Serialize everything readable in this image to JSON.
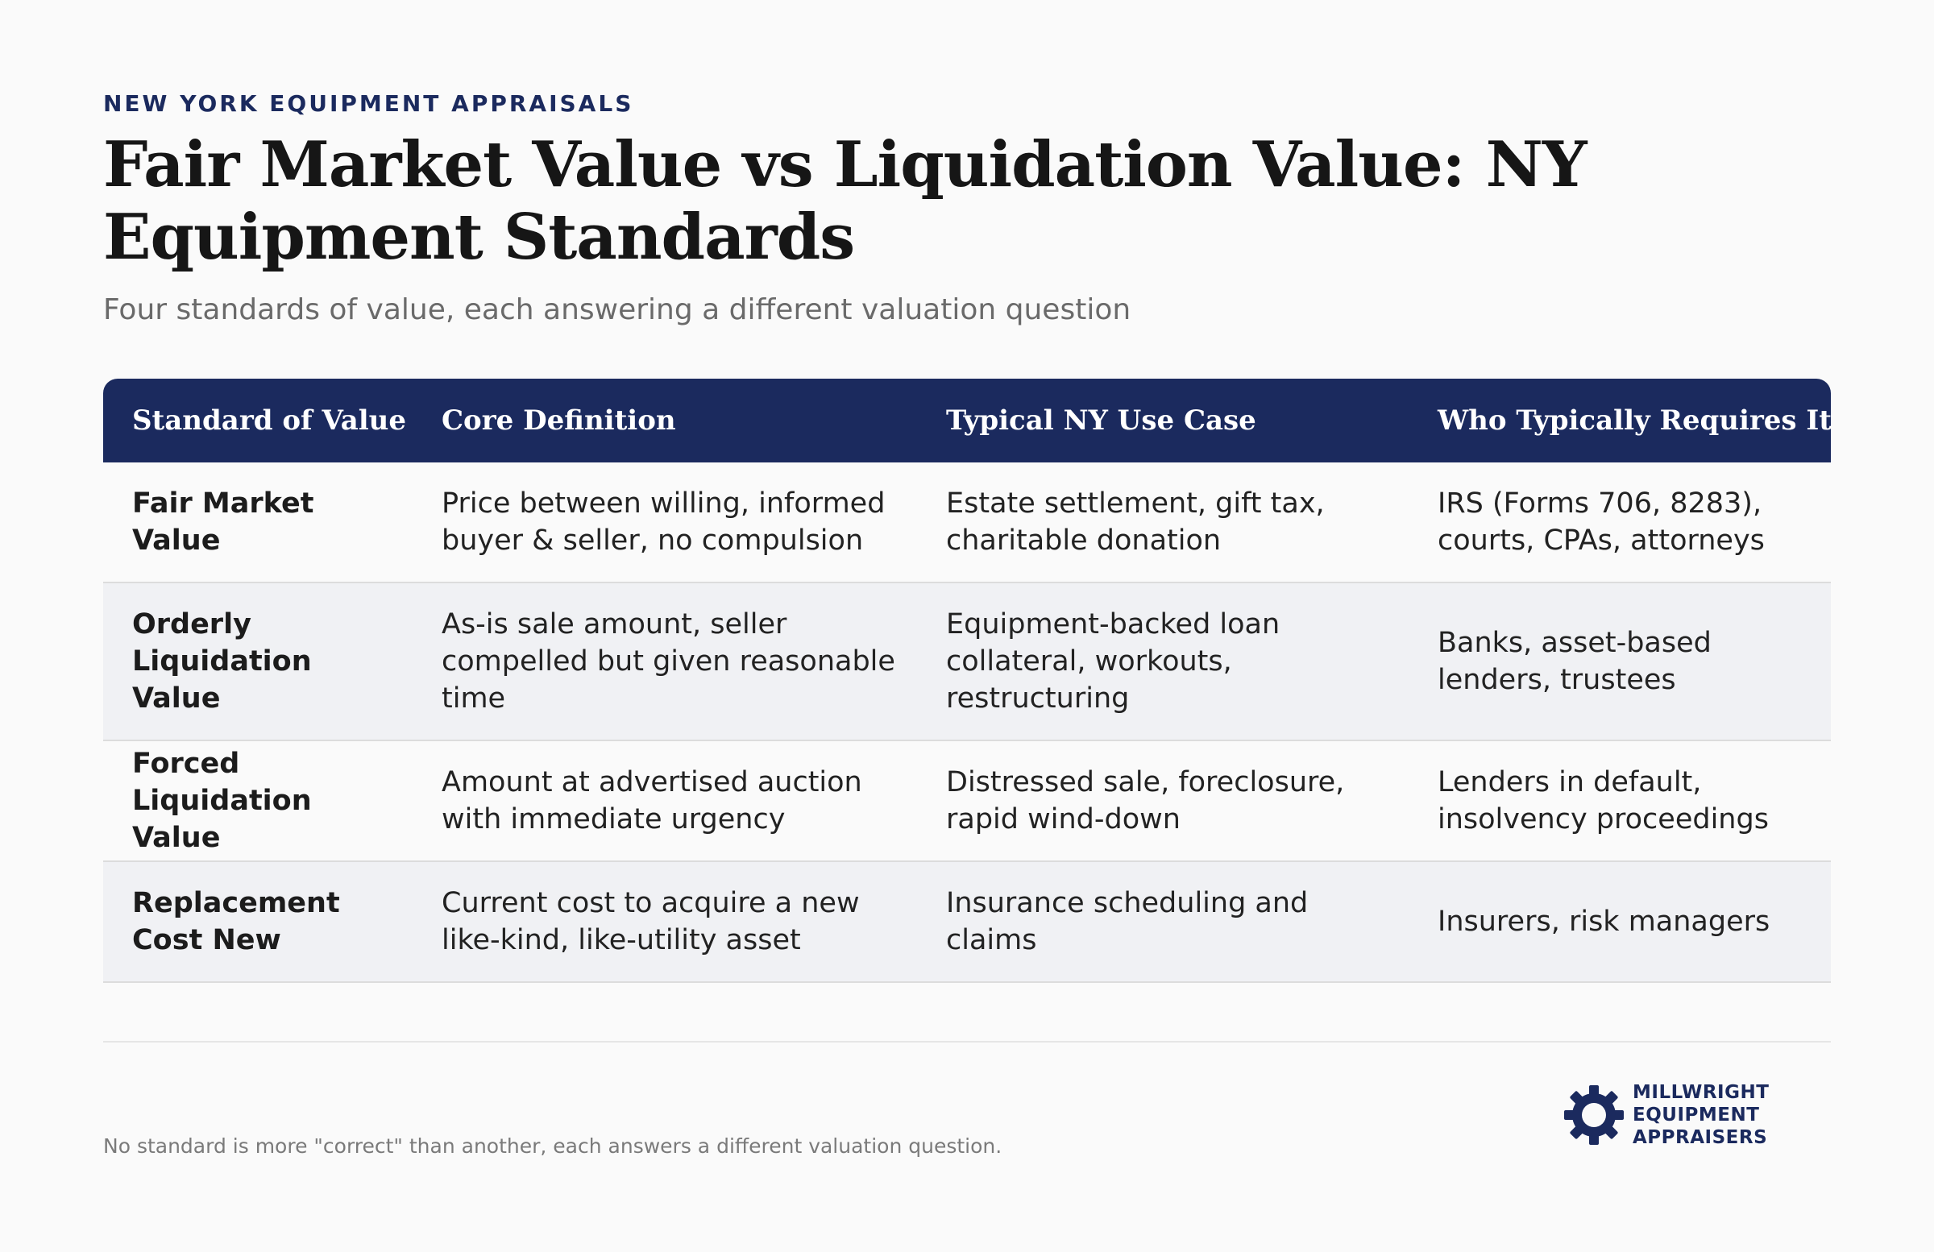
{
  "header": {
    "eyebrow": "NEW YORK EQUIPMENT APPRAISALS",
    "title": "Fair Market Value vs Liquidation Value: NY Equipment Standards",
    "subtitle": "Four standards of value, each answering a different valuation question"
  },
  "table": {
    "columns": [
      "Standard of Value",
      "Core Definition",
      "Typical NY Use Case",
      "Who Typically Requires It"
    ],
    "rows": [
      [
        "Fair Market Value",
        "Price between willing, informed buyer & seller, no compulsion",
        "Estate settlement, gift tax, charitable donation",
        "IRS (Forms 706, 8283), courts, CPAs, attorneys"
      ],
      [
        "Orderly Liquidation Value",
        "As-is sale amount, seller compelled but given reasonable time",
        "Equipment-backed loan collateral, workouts, restructuring",
        "Banks, asset-based lenders, trustees"
      ],
      [
        "Forced Liquidation Value",
        "Amount at advertised auction with immediate urgency",
        "Distressed sale, foreclosure, rapid wind-down",
        "Lenders in default, insolvency proceedings"
      ],
      [
        "Replacement Cost New",
        "Current cost to acquire a new like-kind, like-utility asset",
        "Insurance scheduling and claims",
        "Insurers, risk managers"
      ]
    ]
  },
  "footer": {
    "note": "No standard is more \"correct\" than another, each answers a different valuation question.",
    "logo_lines": [
      "MILLWRIGHT",
      "EQUIPMENT",
      "APPRAISERS"
    ],
    "logo_icon": "gear-icon",
    "brand_color": "#1b2a5e"
  }
}
